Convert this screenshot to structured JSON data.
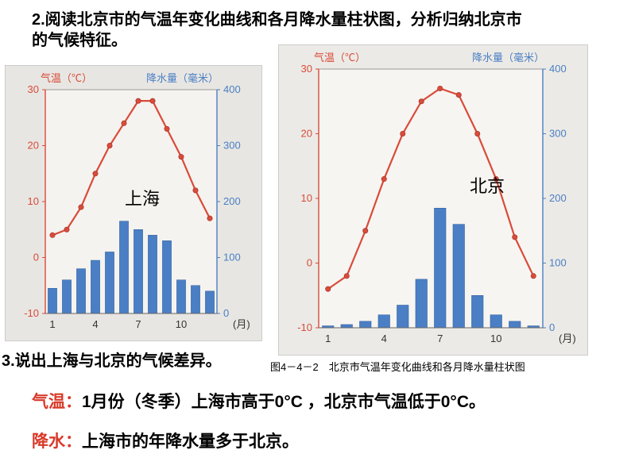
{
  "q2_line1": "2.阅读北京市的气温年变化曲线和各月降水量柱状图，分析归纳北京市",
  "q2_line2": "的气候特征。",
  "q3": "3.说出上海与北京的气候差异。",
  "caption": "图4－4－2　北京市气温年变化曲线和各月降水量柱状图",
  "ans_temp_label": "气温：",
  "ans_temp_text": "1月份（冬季）上海市高于0°C ，北京市气温低于0°C。",
  "ans_precip_label": "降水：",
  "ans_precip_text": "上海市的年降水量多于北京。",
  "shanghai": {
    "city": "上海",
    "temp_axis_label": "气温（℃）",
    "precip_axis_label": "降水量（毫米）",
    "month_label": "(月)",
    "temp_color": "#d94b3a",
    "precip_color": "#4a7fc5",
    "temp_axis_color": "#d94b3a",
    "precip_axis_color": "#4a7fc5",
    "bg": "#e8e6e2",
    "plot_bg": "#f5f3ef",
    "temp_ylim": [
      -10,
      30
    ],
    "temp_ticks": [
      -10,
      0,
      10,
      20,
      30
    ],
    "precip_ylim": [
      0,
      400
    ],
    "precip_ticks": [
      0,
      100,
      200,
      300,
      400
    ],
    "x_ticks": [
      1,
      4,
      7,
      10
    ],
    "months": [
      1,
      2,
      3,
      4,
      5,
      6,
      7,
      8,
      9,
      10,
      11,
      12
    ],
    "temp": [
      4,
      5,
      9,
      15,
      20,
      24,
      28,
      28,
      23,
      18,
      12,
      7
    ],
    "precip": [
      45,
      60,
      80,
      95,
      110,
      165,
      150,
      140,
      130,
      60,
      50,
      40
    ]
  },
  "beijing": {
    "city": "北京",
    "temp_axis_label": "气温（℃）",
    "precip_axis_label": "降水量（毫米）",
    "month_label": "(月)",
    "temp_color": "#d94b3a",
    "precip_color": "#4a7fc5",
    "temp_axis_color": "#d94b3a",
    "precip_axis_color": "#4a7fc5",
    "bg": "#eceae6",
    "plot_bg": "#f7f5f1",
    "temp_ylim": [
      -10,
      30
    ],
    "temp_ticks": [
      -10,
      0,
      10,
      20,
      30
    ],
    "precip_ylim": [
      0,
      400
    ],
    "precip_ticks": [
      0,
      100,
      200,
      300,
      400
    ],
    "x_ticks": [
      1,
      4,
      7,
      10
    ],
    "months": [
      1,
      2,
      3,
      4,
      5,
      6,
      7,
      8,
      9,
      10,
      11,
      12
    ],
    "temp": [
      -4,
      -2,
      5,
      13,
      20,
      25,
      27,
      26,
      20,
      13,
      4,
      -2
    ],
    "precip": [
      3,
      5,
      10,
      20,
      35,
      75,
      185,
      160,
      50,
      20,
      10,
      3
    ]
  }
}
